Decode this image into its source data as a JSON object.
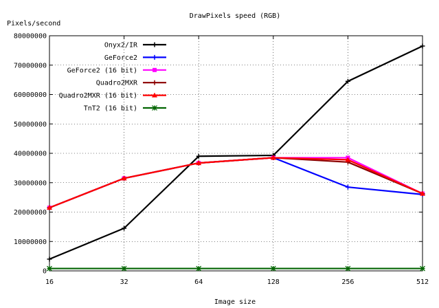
{
  "chart_data": {
    "type": "line",
    "title": "DrawPixels speed (RGB)",
    "xlabel": "Image size",
    "ylabel": "Pixels/second",
    "categories": [
      "16",
      "32",
      "64",
      "128",
      "256",
      "512"
    ],
    "ylim": [
      0,
      80000000
    ],
    "yticks": [
      0,
      10000000,
      20000000,
      30000000,
      40000000,
      50000000,
      60000000,
      70000000,
      80000000
    ],
    "grid": true,
    "legend_position": "top-left",
    "series": [
      {
        "name": "Onyx2/IR",
        "color": "#000000",
        "marker": "plus",
        "values": [
          4000000,
          14500000,
          39000000,
          39300000,
          64500000,
          76500000
        ]
      },
      {
        "name": "GeForce2",
        "color": "#0000ff",
        "marker": "plus",
        "values": [
          21500000,
          31500000,
          36700000,
          38500000,
          28500000,
          26000000
        ]
      },
      {
        "name": "GeForce2 (16 bit)",
        "color": "#ff00ff",
        "marker": "square",
        "values": [
          21500000,
          31500000,
          36700000,
          38500000,
          38500000,
          26300000
        ]
      },
      {
        "name": "Quadro2MXR",
        "color": "#8b0000",
        "marker": "plus",
        "values": [
          21500000,
          31500000,
          36700000,
          38500000,
          37000000,
          26300000
        ]
      },
      {
        "name": "Quadro2MXR (16 bit)",
        "color": "#ff0000",
        "marker": "triangle",
        "values": [
          21500000,
          31500000,
          36700000,
          38500000,
          37800000,
          26300000
        ]
      },
      {
        "name": "TnT2 (16 bit)",
        "color": "#006400",
        "marker": "star",
        "values": [
          800000,
          800000,
          800000,
          800000,
          800000,
          800000
        ]
      }
    ]
  }
}
